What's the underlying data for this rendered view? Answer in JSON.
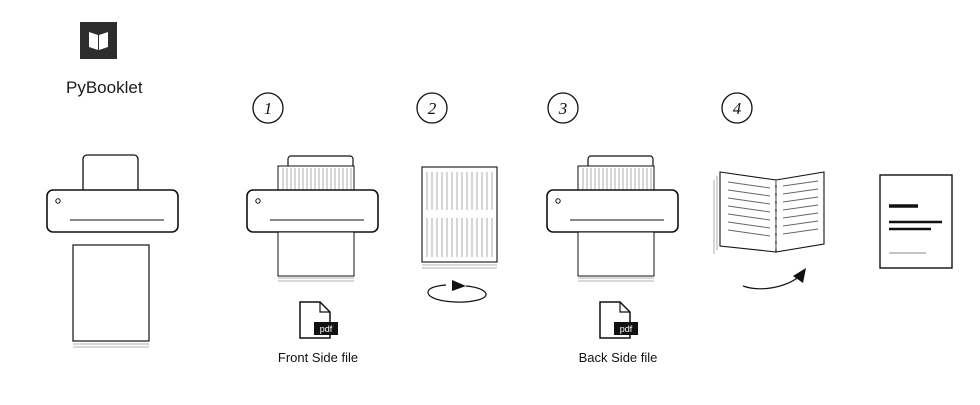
{
  "brand": {
    "name": "PyBooklet",
    "icon": "open-book-icon",
    "tile_color": "#2d2d2d"
  },
  "steps": [
    {
      "number": "1"
    },
    {
      "number": "2"
    },
    {
      "number": "3"
    },
    {
      "number": "4"
    }
  ],
  "files": {
    "ext": "pdf",
    "front_label": "Front Side file",
    "back_label": "Back Side file"
  },
  "colors": {
    "stroke": "#111111",
    "paper_line": "#9a9a9a"
  }
}
